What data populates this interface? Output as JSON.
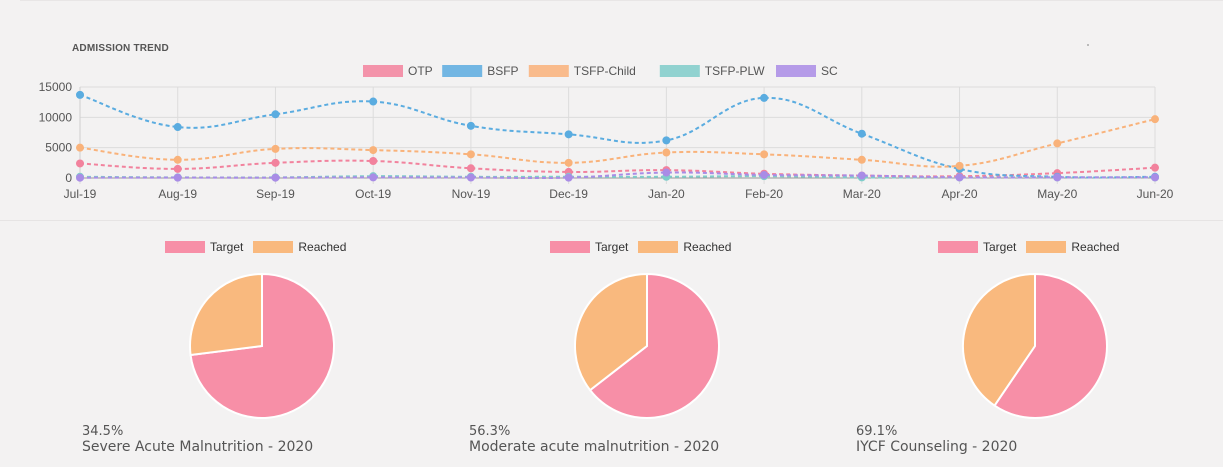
{
  "admission": {
    "title": "ADMISSION TREND"
  },
  "chart_data": [
    {
      "type": "line",
      "title": "ADMISSION TREND",
      "categories": [
        "Jul-19",
        "Aug-19",
        "Sep-19",
        "Oct-19",
        "Nov-19",
        "Dec-19",
        "Jan-20",
        "Feb-20",
        "Mar-20",
        "Apr-20",
        "May-20",
        "Jun-20"
      ],
      "ylim": [
        0,
        15000
      ],
      "yticks": [
        0,
        5000,
        10000,
        15000
      ],
      "grid": true,
      "legend_position": "top",
      "series": [
        {
          "name": "OTP",
          "color": "#f2829d",
          "values": [
            2400,
            1500,
            2500,
            2800,
            1600,
            1000,
            1300,
            700,
            400,
            300,
            800,
            1700
          ]
        },
        {
          "name": "BSFP",
          "color": "#5aace0",
          "values": [
            13700,
            8400,
            10500,
            12600,
            8600,
            7200,
            6200,
            13200,
            7300,
            1500,
            200,
            200
          ]
        },
        {
          "name": "TSFP-Child",
          "color": "#f9b27a",
          "values": [
            5000,
            3000,
            4800,
            4600,
            3900,
            2500,
            4200,
            3900,
            3000,
            2000,
            5700,
            9700
          ]
        },
        {
          "name": "TSFP-PLW",
          "color": "#7fcdca",
          "values": [
            200,
            100,
            100,
            300,
            200,
            200,
            200,
            300,
            100,
            100,
            100,
            100
          ]
        },
        {
          "name": "SC",
          "color": "#a98ce6",
          "values": [
            50,
            60,
            50,
            100,
            80,
            60,
            900,
            500,
            400,
            100,
            100,
            100
          ]
        }
      ]
    },
    {
      "type": "pie",
      "labels": [
        "Target",
        "Reached"
      ],
      "colors": [
        "#f78fa7",
        "#f9b97e"
      ],
      "values": [
        73,
        27
      ],
      "percent_label": "34.5%",
      "caption": "Severe Acute Malnutrition - 2020"
    },
    {
      "type": "pie",
      "labels": [
        "Target",
        "Reached"
      ],
      "colors": [
        "#f78fa7",
        "#f9b97e"
      ],
      "values": [
        64.5,
        35.5
      ],
      "percent_label": "56.3%",
      "caption": "Moderate acute malnutrition - 2020"
    },
    {
      "type": "pie",
      "labels": [
        "Target",
        "Reached"
      ],
      "colors": [
        "#f78fa7",
        "#f9b97e"
      ],
      "values": [
        59.5,
        40.5
      ],
      "percent_label": "69.1%",
      "caption": "IYCF Counseling - 2020"
    }
  ]
}
